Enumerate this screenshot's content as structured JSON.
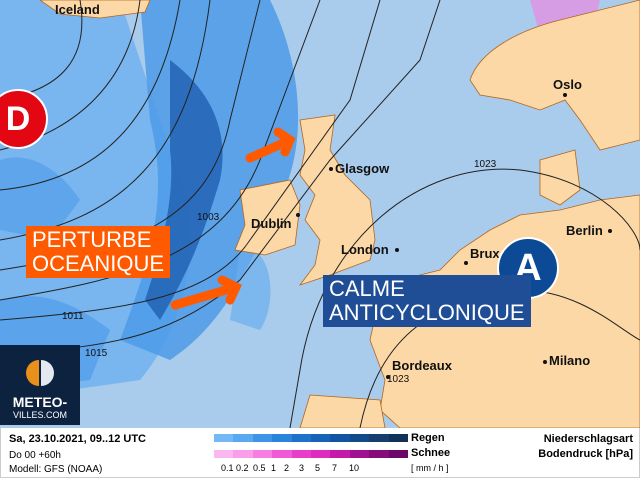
{
  "map": {
    "cities": [
      "Iceland",
      "Oslo",
      "Glasgow",
      "Dublin",
      "London",
      "Brux",
      "Berlin",
      "Bordeaux",
      "Milano"
    ],
    "isobars": [
      "1023",
      "1003",
      "1011",
      "1015",
      "1023"
    ],
    "colors": {
      "ocean": "#a9cbec",
      "land": "#fbd8a6",
      "coast": "#b5651d",
      "rain_light": "#6aaef0",
      "rain_dark": "#1f5fb0"
    }
  },
  "annotations": {
    "low_symbol": "D",
    "high_symbol": "A",
    "low_label_line1": "PERTURBE",
    "low_label_line2": "OCEANIQUE",
    "high_label_line1": "CALME",
    "high_label_line2": "ANTICYCLONIQUE",
    "colors": {
      "low": "#e30613",
      "low_label": "#ff5a00",
      "high": "#0d4a96",
      "high_label": "#1f4e96",
      "arrow": "#ff5a00"
    }
  },
  "logo": {
    "line1": "METEO-",
    "line2": "VILLES.COM"
  },
  "legend": {
    "datetime": "Sa, 23.10.2021, 09..12 UTC",
    "run": "Do 00 +60h",
    "model": "Modell: GFS (NOAA)",
    "rain_label": "Regen",
    "snow_label": "Schnee",
    "unit": "[ mm / h ]",
    "ticks": [
      "0.1",
      "0.2",
      "0.5",
      "1",
      "2",
      "3",
      "5",
      "7",
      "10"
    ],
    "title1": "Niederschlagsart",
    "title2": "Bodendruck [hPa]",
    "rain_colors": [
      "#74b9f5",
      "#5aa8ef",
      "#3d95e8",
      "#2a84dc",
      "#1d72cc",
      "#1763b8",
      "#1154a3",
      "#134a8a",
      "#173e6e",
      "#13325a"
    ],
    "snow_colors": [
      "#fbb7f0",
      "#fa9ee9",
      "#f77ee0",
      "#ef5ad6",
      "#e83fcb",
      "#dd2cc0",
      "#c31aa8",
      "#a01090",
      "#850a7a",
      "#6c0668"
    ]
  }
}
